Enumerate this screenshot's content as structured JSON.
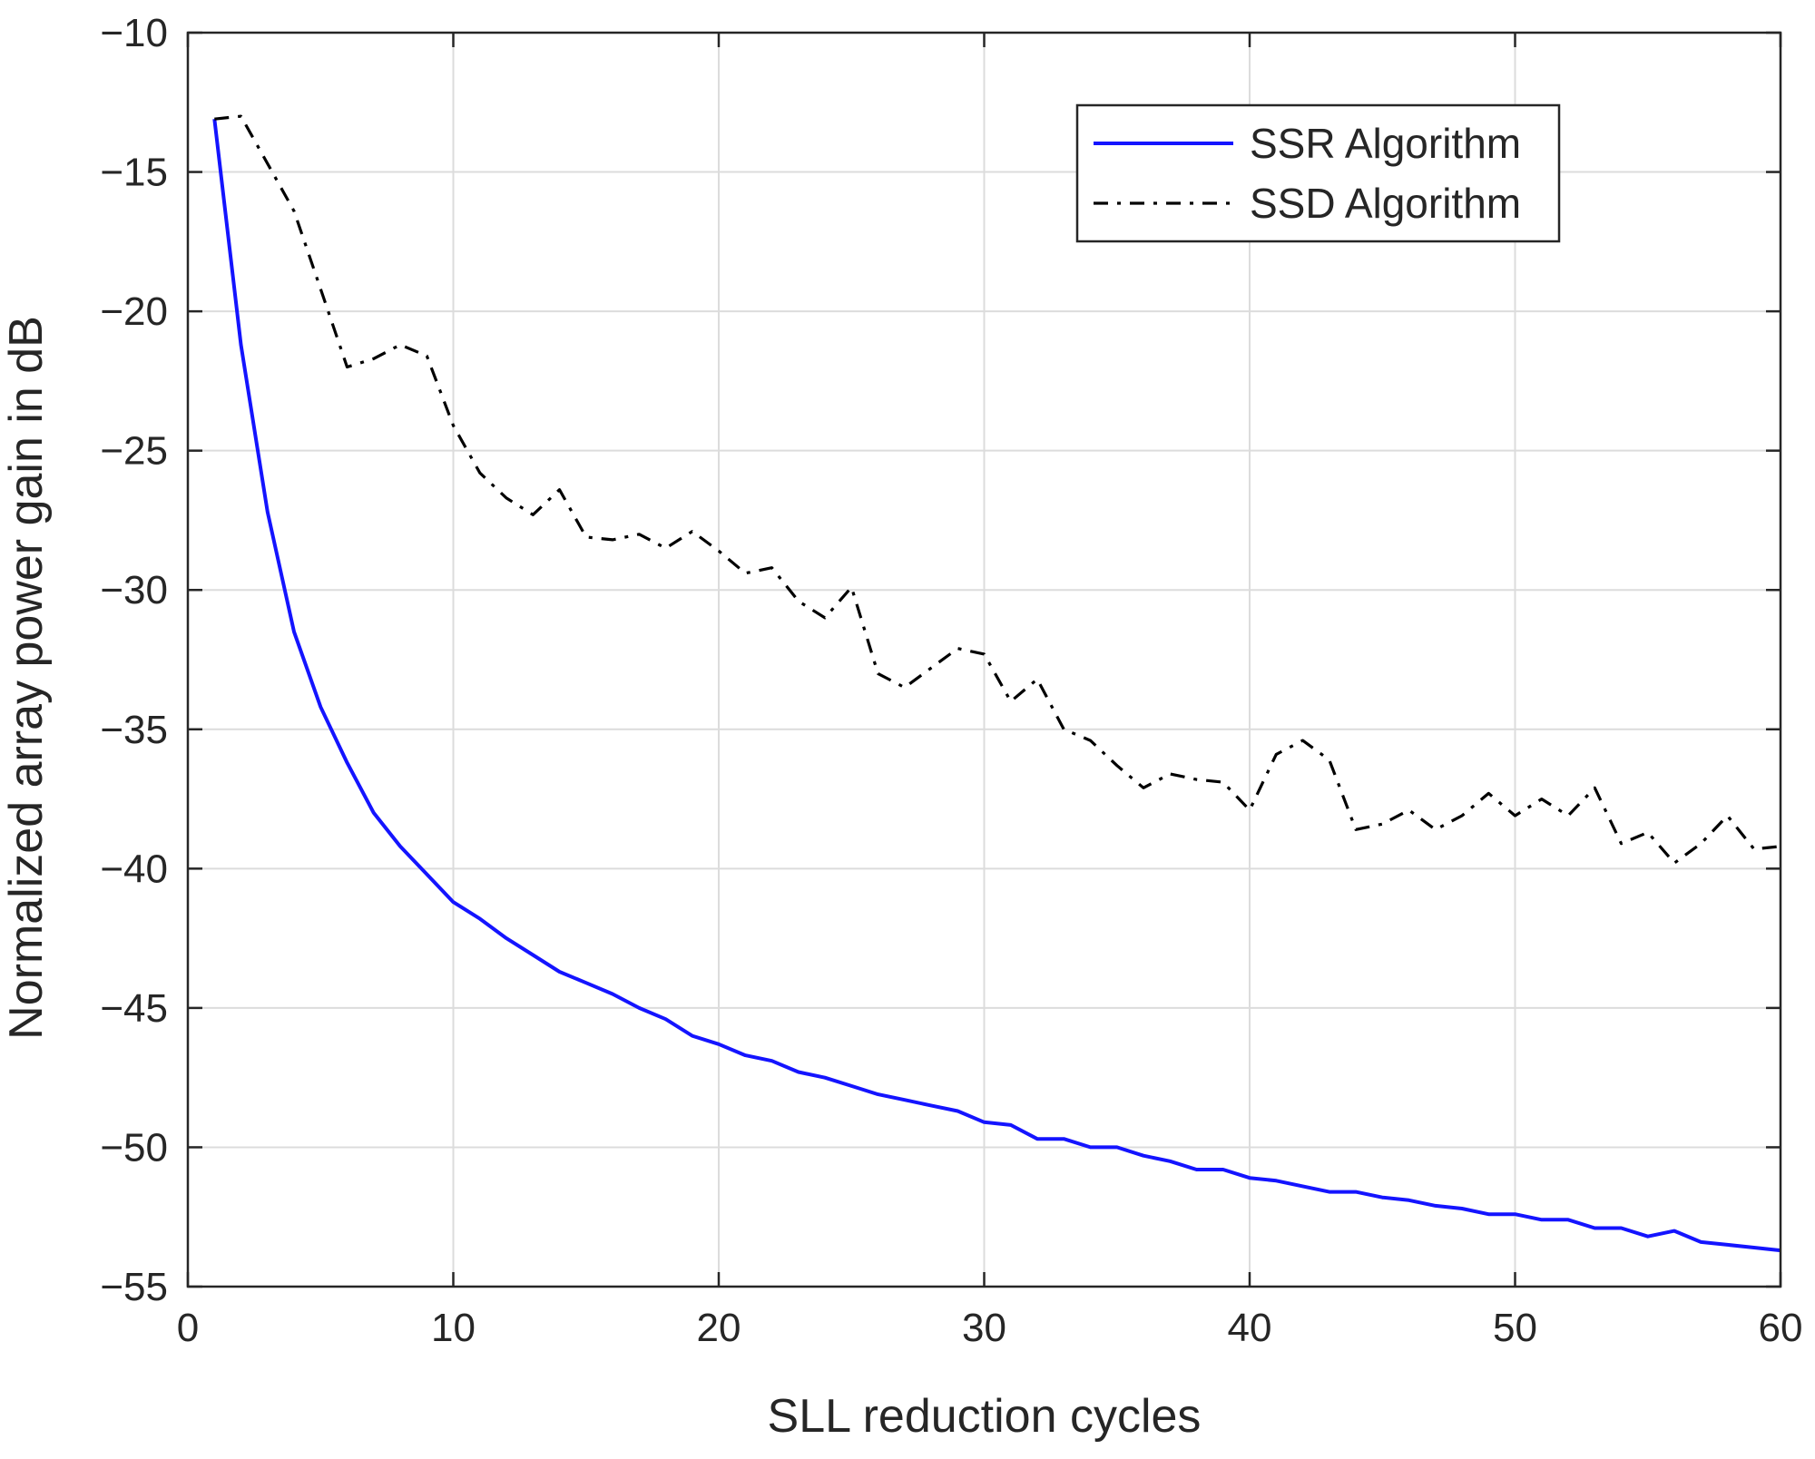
{
  "chart_data": {
    "type": "line",
    "title": "",
    "xlabel": "SLL reduction cycles",
    "ylabel": "Normalized array power gain in dB",
    "xlim": [
      0,
      60
    ],
    "ylim": [
      -55,
      -10
    ],
    "xticks": [
      0,
      10,
      20,
      30,
      40,
      50,
      60
    ],
    "yticks": [
      -10,
      -15,
      -20,
      -25,
      -30,
      -35,
      -40,
      -45,
      -50,
      -55
    ],
    "xtick_labels": [
      "0",
      "10",
      "20",
      "30",
      "40",
      "50",
      "60"
    ],
    "ytick_labels": [
      "−10",
      "−15",
      "−20",
      "−25",
      "−30",
      "−35",
      "−40",
      "−45",
      "−50",
      "−55"
    ],
    "grid": true,
    "legend_position": "top-right",
    "series": [
      {
        "name": "SSR Algorithm",
        "color": "#1414ff",
        "style": "solid",
        "x": [
          1,
          2,
          3,
          4,
          5,
          6,
          7,
          8,
          9,
          10,
          11,
          12,
          13,
          14,
          15,
          16,
          17,
          18,
          19,
          20,
          21,
          22,
          23,
          24,
          25,
          26,
          27,
          28,
          29,
          30,
          31,
          32,
          33,
          34,
          35,
          36,
          37,
          38,
          39,
          40,
          41,
          42,
          43,
          44,
          45,
          46,
          47,
          48,
          49,
          50,
          51,
          52,
          53,
          54,
          55,
          56,
          57,
          58,
          59,
          60
        ],
        "y": [
          -13.1,
          -21.2,
          -27.2,
          -31.5,
          -34.2,
          -36.2,
          -38.0,
          -39.2,
          -40.2,
          -41.2,
          -41.8,
          -42.5,
          -43.1,
          -43.7,
          -44.1,
          -44.5,
          -45.0,
          -45.4,
          -46.0,
          -46.3,
          -46.7,
          -46.9,
          -47.3,
          -47.5,
          -47.8,
          -48.1,
          -48.3,
          -48.5,
          -48.7,
          -49.1,
          -49.2,
          -49.7,
          -49.7,
          -50.0,
          -50.0,
          -50.3,
          -50.5,
          -50.8,
          -50.8,
          -51.1,
          -51.2,
          -51.4,
          -51.6,
          -51.6,
          -51.8,
          -51.9,
          -52.1,
          -52.2,
          -52.4,
          -52.4,
          -52.6,
          -52.6,
          -52.9,
          -52.9,
          -53.2,
          -53.0,
          -53.4,
          -53.5,
          -53.6,
          -53.7
        ]
      },
      {
        "name": "SSD Algorithm",
        "color": "#000000",
        "style": "dashdot",
        "x": [
          1,
          2,
          3,
          4,
          5,
          6,
          7,
          8,
          9,
          10,
          11,
          12,
          13,
          14,
          15,
          16,
          17,
          18,
          19,
          20,
          21,
          22,
          23,
          24,
          25,
          26,
          27,
          28,
          29,
          30,
          31,
          32,
          33,
          34,
          35,
          36,
          37,
          38,
          39,
          40,
          41,
          42,
          43,
          44,
          45,
          46,
          47,
          48,
          49,
          50,
          51,
          52,
          53,
          54,
          55,
          56,
          57,
          58,
          59,
          60
        ],
        "y": [
          -13.1,
          -13.0,
          -14.7,
          -16.4,
          -19.2,
          -22.0,
          -21.7,
          -21.2,
          -21.6,
          -24.1,
          -25.8,
          -26.7,
          -27.3,
          -26.4,
          -28.1,
          -28.2,
          -28.0,
          -28.5,
          -27.9,
          -28.6,
          -29.4,
          -29.2,
          -30.4,
          -31.0,
          -29.9,
          -33.0,
          -33.5,
          -32.8,
          -32.1,
          -32.3,
          -34.0,
          -33.2,
          -35.0,
          -35.4,
          -36.3,
          -37.1,
          -36.6,
          -36.8,
          -36.9,
          -37.9,
          -35.9,
          -35.4,
          -36.1,
          -38.6,
          -38.4,
          -37.9,
          -38.6,
          -38.1,
          -37.3,
          -38.1,
          -37.5,
          -38.1,
          -37.1,
          -39.1,
          -38.7,
          -39.8,
          -39.1,
          -38.1,
          -39.3,
          -39.2
        ]
      }
    ]
  }
}
